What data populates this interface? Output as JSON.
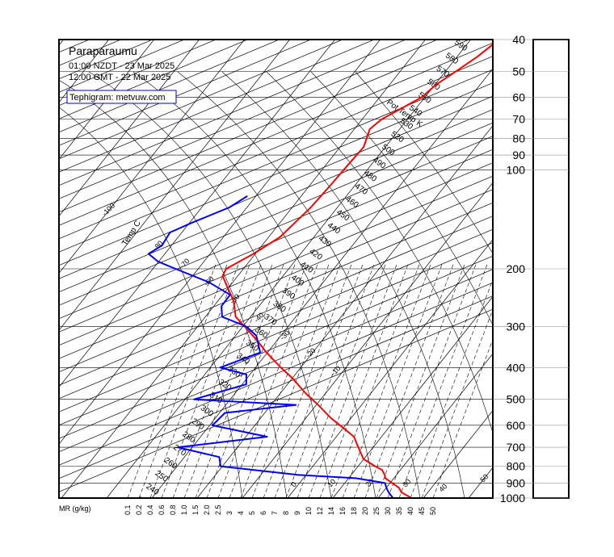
{
  "header": {
    "station": "Paraparaumu",
    "time_local": "01:00 NZDT - 23 Mar 2025",
    "time_utc": "12:00 GMT - 22 Mar 2025",
    "source_link": "Tephigram: metvuw.com"
  },
  "chart_data": {
    "type": "line",
    "title": "Paraparaumu",
    "pressure_axis": {
      "levels": [
        40,
        50,
        60,
        70,
        80,
        90,
        100,
        200,
        300,
        400,
        500,
        600,
        700,
        800,
        900,
        1000
      ],
      "labels": [
        "40",
        "50",
        "60",
        "70",
        "80",
        "90",
        "100",
        "200",
        "300",
        "400",
        "500",
        "600",
        "700",
        "800",
        "900",
        "1000"
      ],
      "range": [
        40,
        1000
      ],
      "grid": true
    },
    "mixing_ratio_axis": {
      "label": "MR (g/kg)",
      "ticks": [
        "0.1",
        "0.2",
        "0.4",
        "0.6",
        "0.8",
        "1.0",
        "1.5",
        "2.0",
        "2.5",
        "3",
        "4",
        "5",
        "6",
        "7",
        "8",
        "9",
        "10",
        "12",
        "14",
        "16",
        "18",
        "20",
        "25",
        "30",
        "35",
        "40",
        "45",
        "50"
      ]
    },
    "temperature_isotherm_labels": [
      "-100",
      "-80",
      "-70",
      "-60",
      "-50",
      "-40",
      "-30",
      "-20",
      "-10",
      "0",
      "10",
      "20",
      "30",
      "40",
      "50"
    ],
    "temperature_axis_title": "Temp C",
    "theta_axis_title": "Pot Temp K",
    "theta_labels": [
      "590",
      "580",
      "570",
      "560",
      "550",
      "540",
      "530",
      "520",
      "500",
      "490",
      "480",
      "470",
      "460",
      "450",
      "440",
      "430",
      "420",
      "410",
      "400",
      "390",
      "380",
      "370",
      "360",
      "350",
      "340",
      "330",
      "320",
      "310",
      "300",
      "290",
      "280",
      "270",
      "260",
      "250",
      "240",
      "230"
    ],
    "series": [
      {
        "color": "#ff0000",
        "pressure": [
          1000,
          960,
          930,
          900,
          870,
          850,
          820,
          800,
          760,
          700,
          650,
          610,
          570,
          520,
          480,
          430,
          400,
          360,
          330,
          300,
          280,
          250,
          230,
          210,
          200,
          180,
          160,
          130,
          110,
          100,
          85,
          75,
          70,
          60,
          55,
          50,
          45,
          40
        ],
        "temperature": [
          17.4,
          14.1,
          12.8,
          10.5,
          8.1,
          7.4,
          5.9,
          3.8,
          -0.1,
          -3.3,
          -6.1,
          -10.1,
          -14.5,
          -19.6,
          -24.3,
          -30.1,
          -34.4,
          -40.2,
          -44.5,
          -49.6,
          -53.3,
          -56.6,
          -59.9,
          -63.4,
          -63.8,
          -60.4,
          -57.5,
          -55.9,
          -55.4,
          -55.2,
          -54.8,
          -56.6,
          -55.7,
          -50.7,
          -49.8,
          -47.7,
          -45.5,
          -43.8
        ]
      },
      {
        "color": "#0000ff",
        "pressure": [
          1000,
          960,
          930,
          900,
          870,
          850,
          800,
          750,
          700,
          650,
          600,
          550,
          520,
          500,
          450,
          420,
          400,
          360,
          320,
          300,
          280,
          260,
          240,
          220,
          200,
          190,
          180,
          170,
          155,
          145,
          130,
          120
        ],
        "dewpoint": [
          13.3,
          11.3,
          10.0,
          8.9,
          1.6,
          -11.8,
          -30.4,
          -32.3,
          -43.2,
          -25.3,
          -39.4,
          -38.8,
          -24.5,
          -48.0,
          -39.1,
          -40.8,
          -47.8,
          -41.6,
          -45.4,
          -49.2,
          -56.3,
          -58.3,
          -58.4,
          -65.2,
          -75.0,
          -80.2,
          -83.6,
          -82.1,
          -82.6,
          -79.6,
          -73.9,
          -71.9
        ]
      }
    ]
  }
}
